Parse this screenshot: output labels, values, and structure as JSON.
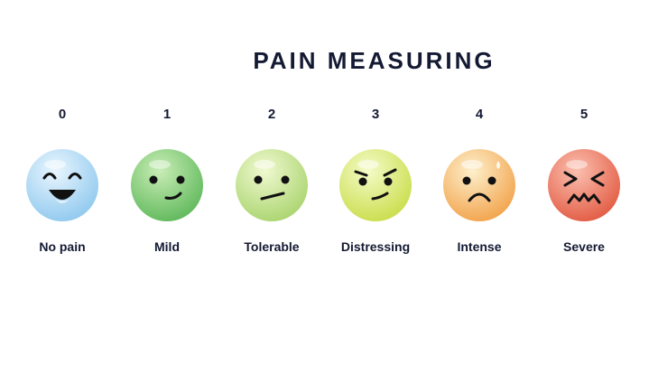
{
  "title": "PAIN MEASURING",
  "scale": [
    {
      "value": "0",
      "label": "No pain",
      "icon": "laughing-face-icon",
      "color_top": "#d6edfb",
      "color_bottom": "#8ec8ee"
    },
    {
      "value": "1",
      "label": "Mild",
      "icon": "smiling-face-icon",
      "color_top": "#b9e6a4",
      "color_bottom": "#5eb85a"
    },
    {
      "value": "2",
      "label": "Tolerable",
      "icon": "neutral-face-icon",
      "color_top": "#e6f5b8",
      "color_bottom": "#a9d46e"
    },
    {
      "value": "3",
      "label": "Distressing",
      "icon": "frowning-face-icon",
      "color_top": "#eef7a8",
      "color_bottom": "#c9dd4a"
    },
    {
      "value": "4",
      "label": "Intense",
      "icon": "sad-face-icon",
      "color_top": "#fbe6b4",
      "color_bottom": "#f2a24a"
    },
    {
      "value": "5",
      "label": "Severe",
      "icon": "grimacing-face-icon",
      "color_top": "#f7a28e",
      "color_bottom": "#e25a42"
    }
  ]
}
